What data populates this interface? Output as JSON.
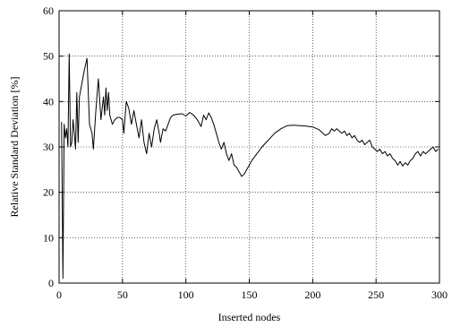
{
  "chart_data": {
    "type": "line",
    "title": "",
    "xlabel": "Inserted nodes",
    "ylabel": "Relative Standard Deviation [%]",
    "xlim": [
      0,
      300
    ],
    "ylim": [
      0,
      60
    ],
    "xticks": [
      0,
      50,
      100,
      150,
      200,
      250,
      300
    ],
    "yticks": [
      0,
      10,
      20,
      30,
      40,
      50,
      60
    ],
    "grid": true,
    "series": [
      {
        "color": "#000000",
        "points": [
          [
            2,
            35.5
          ],
          [
            3,
            1
          ],
          [
            4,
            35
          ],
          [
            5,
            32
          ],
          [
            6,
            34
          ],
          [
            7,
            30
          ],
          [
            8,
            50.5
          ],
          [
            9,
            30
          ],
          [
            10,
            31
          ],
          [
            11,
            36
          ],
          [
            12,
            33
          ],
          [
            13,
            29.5
          ],
          [
            14,
            42
          ],
          [
            15,
            31
          ],
          [
            16,
            41
          ],
          [
            18,
            44
          ],
          [
            20,
            47
          ],
          [
            22,
            49.5
          ],
          [
            24,
            35
          ],
          [
            26,
            33
          ],
          [
            27,
            29.5
          ],
          [
            29,
            38
          ],
          [
            31,
            45
          ],
          [
            33,
            36
          ],
          [
            35,
            41
          ],
          [
            36,
            37
          ],
          [
            37,
            43
          ],
          [
            38,
            38
          ],
          [
            39,
            42
          ],
          [
            40,
            37
          ],
          [
            42,
            35
          ],
          [
            44,
            36
          ],
          [
            46,
            36.5
          ],
          [
            48,
            36.5
          ],
          [
            50,
            36
          ],
          [
            51,
            33
          ],
          [
            53,
            40
          ],
          [
            55,
            38.5
          ],
          [
            57,
            35
          ],
          [
            59,
            38
          ],
          [
            61,
            35
          ],
          [
            63,
            32
          ],
          [
            65,
            36
          ],
          [
            67,
            31
          ],
          [
            69,
            28.5
          ],
          [
            71,
            33
          ],
          [
            73,
            30
          ],
          [
            75,
            34
          ],
          [
            77,
            36
          ],
          [
            79,
            33
          ],
          [
            80,
            31
          ],
          [
            82,
            34
          ],
          [
            84,
            33.5
          ],
          [
            86,
            35
          ],
          [
            88,
            36.5
          ],
          [
            90,
            37
          ],
          [
            93,
            37.2
          ],
          [
            97,
            37.3
          ],
          [
            100,
            36.8
          ],
          [
            103,
            37.6
          ],
          [
            106,
            37
          ],
          [
            109,
            36
          ],
          [
            112,
            34.5
          ],
          [
            114,
            37
          ],
          [
            116,
            36
          ],
          [
            118,
            37.5
          ],
          [
            120,
            36.5
          ],
          [
            122,
            35
          ],
          [
            124,
            33
          ],
          [
            126,
            31
          ],
          [
            128,
            29.5
          ],
          [
            130,
            31
          ],
          [
            132,
            28.5
          ],
          [
            134,
            27
          ],
          [
            136,
            28.5
          ],
          [
            138,
            26
          ],
          [
            140,
            25.5
          ],
          [
            142,
            24.5
          ],
          [
            144,
            23.5
          ],
          [
            146,
            24
          ],
          [
            148,
            25
          ],
          [
            152,
            27
          ],
          [
            156,
            28.5
          ],
          [
            160,
            30
          ],
          [
            165,
            31.5
          ],
          [
            170,
            33
          ],
          [
            175,
            34
          ],
          [
            180,
            34.7
          ],
          [
            185,
            34.8
          ],
          [
            190,
            34.7
          ],
          [
            195,
            34.6
          ],
          [
            200,
            34.4
          ],
          [
            205,
            33.8
          ],
          [
            210,
            32.5
          ],
          [
            213,
            33
          ],
          [
            215,
            34
          ],
          [
            217,
            33.5
          ],
          [
            219,
            34
          ],
          [
            221,
            33.5
          ],
          [
            223,
            33
          ],
          [
            225,
            33.5
          ],
          [
            227,
            32.5
          ],
          [
            229,
            33
          ],
          [
            231,
            32
          ],
          [
            233,
            32.5
          ],
          [
            235,
            31.5
          ],
          [
            237,
            31
          ],
          [
            239,
            31.5
          ],
          [
            241,
            30.5
          ],
          [
            243,
            31
          ],
          [
            245,
            31.5
          ],
          [
            247,
            30
          ],
          [
            249,
            29.5
          ],
          [
            251,
            29
          ],
          [
            253,
            29.5
          ],
          [
            255,
            28.5
          ],
          [
            257,
            29
          ],
          [
            259,
            28
          ],
          [
            261,
            28.5
          ],
          [
            263,
            27.5
          ],
          [
            265,
            27
          ],
          [
            267,
            26
          ],
          [
            269,
            26.8
          ],
          [
            271,
            25.8
          ],
          [
            273,
            26.5
          ],
          [
            275,
            26
          ],
          [
            277,
            27
          ],
          [
            279,
            27.5
          ],
          [
            281,
            28.5
          ],
          [
            283,
            29
          ],
          [
            285,
            28
          ],
          [
            287,
            29
          ],
          [
            289,
            28.5
          ],
          [
            291,
            29
          ],
          [
            293,
            29.5
          ],
          [
            295,
            30
          ],
          [
            297,
            29
          ],
          [
            299,
            29.5
          ]
        ]
      }
    ]
  }
}
